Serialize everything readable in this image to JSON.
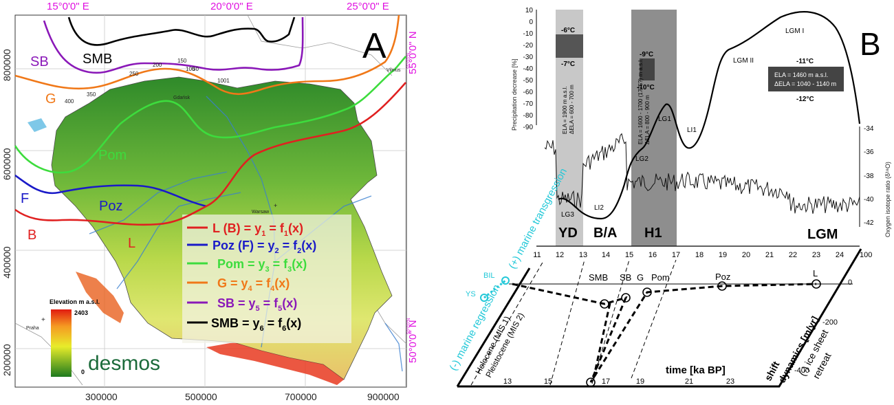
{
  "panel_a": {
    "letter": "A",
    "top_lon_labels": [
      "15°0'0\" E",
      "20°0'0\" E",
      "25°0'0\" E"
    ],
    "left_y_labels": [
      "800000",
      "600000",
      "400000",
      "200000"
    ],
    "bottom_x_labels": [
      "300000",
      "500000",
      "700000",
      "900000"
    ],
    "right_lat_labels": [
      "55°0'0\" N",
      "50°0'0\" N"
    ],
    "right_lat_small": [
      "55°0'0\"N",
      "50°0'0\"N"
    ],
    "line_labels": {
      "smb": "SMB",
      "sb": "SB",
      "g": "G",
      "pom": "Pom",
      "f": "F",
      "poz": "Poz",
      "b": "B",
      "l": "L"
    },
    "contour_labels": [
      "200",
      "250",
      "150",
      "350",
      "400",
      "100",
      "50",
      "1001"
    ],
    "cities": {
      "warsaw": "Warsaw",
      "gdansk": "Gdańsk",
      "vilnius": "Vilnius",
      "praha": "Praha"
    },
    "legend": {
      "items": [
        {
          "text": "L (B) = y",
          "sub": "1",
          "mid": " = f",
          "sub2": "1",
          "end": "(x)",
          "color": "#e02020"
        },
        {
          "text": "Poz (F) = y",
          "sub": "2",
          "mid": " = f",
          "sub2": "2",
          "end": "(x)",
          "color": "#1a1ac8"
        },
        {
          "text": "Pom = y",
          "sub": "3",
          "mid": " = f",
          "sub2": "3",
          "end": "(x)",
          "color": "#3ddc3d"
        },
        {
          "text": "G = y",
          "sub": "4",
          "mid": " = f",
          "sub2": "4",
          "end": "(x)",
          "color": "#f07818"
        },
        {
          "text": "SB = y",
          "sub": "5",
          "mid": " = f",
          "sub2": "5",
          "end": "(x)",
          "color": "#8a18b8"
        },
        {
          "text": "SMB = y",
          "sub": "6",
          "mid": "  = f",
          "sub2": "6",
          "end": "(x)",
          "color": "#000000"
        }
      ]
    },
    "elevation": {
      "title": "Elevation m a.s.l.",
      "max": "2403",
      "min": "0"
    },
    "brand": "desmos"
  },
  "panel_b": {
    "letter": "B",
    "precip_ticks": [
      "10",
      "0",
      "-10",
      "-20",
      "-30",
      "-40",
      "-50",
      "-60",
      "-70",
      "-80",
      "-90"
    ],
    "precip_label": "Precipitation decrease [%]",
    "oxygen_ticks": [
      "-34",
      "-36",
      "-38",
      "-40",
      "-42"
    ],
    "oxygen_label": "Oxygen isotope ratio (δ¹⁸O)",
    "time_ticks": [
      "11",
      "12",
      "13",
      "14",
      "15",
      "16",
      "17",
      "18",
      "19",
      "20",
      "21",
      "22",
      "23",
      "24"
    ],
    "periods": [
      "YD",
      "B/A",
      "H1",
      "LGM"
    ],
    "phases": [
      "LG3",
      "LI2",
      "LG2",
      "LG1",
      "LI1",
      "LGM II",
      "LGM I"
    ],
    "temps": {
      "yd_top": "-6°C",
      "yd_bot": "-7°C",
      "h1_top": "-9°C",
      "h1_bot": "-10°C",
      "lgm_top": "-11°C",
      "lgm_bot": "-12°C"
    },
    "ela_yd": [
      "ELA = 1900 m a.s.l.",
      "ΔELA = 600 - 700 m"
    ],
    "ela_h1": [
      "ELA = 1600 - 1700 (1775?) m a.s.l.",
      "ΔELA = 800 - 900 m"
    ],
    "ela_lgm": [
      "ELA = 1460 m a.s.l.",
      "ΔELA = 1040 - 1140 m"
    ],
    "marine_transgression": "(+) marine transgression",
    "marine_regression": "(-) marine regression",
    "bil": "BIL",
    "ys": "YS",
    "holocene": "Holocene (MIS 1)",
    "pleistocene": "Pleistocene (MIS 2)",
    "point_labels": [
      "SMB",
      "SB",
      "G",
      "Pom",
      "Poz",
      "L"
    ],
    "time_axis_label": "time [ka BP]",
    "time_axis_ticks": [
      "13",
      "15",
      "17",
      "19",
      "21",
      "23"
    ],
    "shift_ticks": [
      "100",
      "0",
      "-200",
      "-400"
    ],
    "shift_label": [
      "shift",
      "dynamics [m/yr]",
      "(-) ice sheet",
      "retreat"
    ]
  }
}
